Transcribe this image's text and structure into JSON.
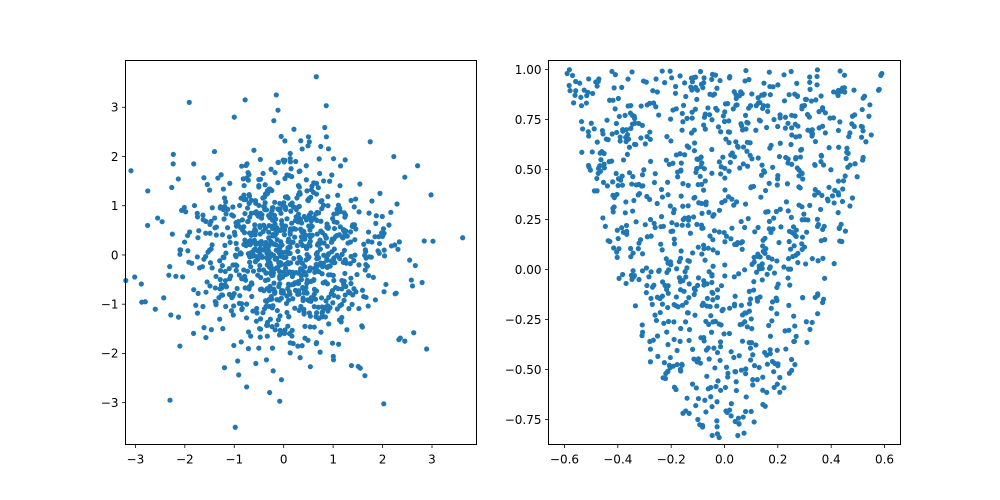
{
  "colors": {
    "series": "#1f77b4",
    "frame": "#000000",
    "background": "#ffffff"
  },
  "chart_data": [
    {
      "type": "scatter",
      "title": "",
      "xlabel": "",
      "ylabel": "",
      "xlim": [
        -3.2,
        3.9
      ],
      "ylim": [
        -3.85,
        3.95
      ],
      "xticks": [
        -3,
        -2,
        -1,
        0,
        1,
        2,
        3
      ],
      "yticks": [
        -3,
        -2,
        -1,
        0,
        1,
        2,
        3
      ],
      "xtick_labels": [
        "−3",
        "−2",
        "−1",
        "0",
        "1",
        "2",
        "3"
      ],
      "ytick_labels": [
        "−3",
        "−2",
        "−1",
        "0",
        "1",
        "2",
        "3"
      ],
      "grid": false,
      "legend": "none",
      "distribution": "bivariate standard normal, approximately 1000 points centered at (0, 0)",
      "point_count": 1000,
      "sample_points": [
        [
          0.66,
          3.62
        ],
        [
          -1.91,
          3.1
        ],
        [
          -0.78,
          3.15
        ],
        [
          -0.15,
          3.25
        ],
        [
          3.62,
          0.35
        ],
        [
          -2.8,
          -0.95
        ],
        [
          -2.75,
          1.3
        ],
        [
          -2.3,
          -2.95
        ],
        [
          -0.98,
          -3.5
        ],
        [
          -0.08,
          -2.97
        ],
        [
          2.45,
          -1.75
        ],
        [
          2.98,
          1.22
        ],
        [
          3.02,
          0.28
        ],
        [
          2.8,
          -0.56
        ],
        [
          -2.1,
          -1.85
        ],
        [
          -1.0,
          2.8
        ],
        [
          0.5,
          2.4
        ],
        [
          1.75,
          2.3
        ],
        [
          -1.4,
          2.1
        ],
        [
          1.55,
          -2.3
        ],
        [
          2.63,
          -1.58
        ],
        [
          2.33,
          -1.72
        ],
        [
          -1.82,
          1.85
        ],
        [
          2.45,
          1.58
        ],
        [
          -2.55,
          0.75
        ]
      ]
    },
    {
      "type": "scatter",
      "title": "",
      "xlabel": "",
      "ylabel": "",
      "xlim": [
        -0.66,
        0.66
      ],
      "ylim": [
        -0.875,
        1.045
      ],
      "xticks": [
        -0.6,
        -0.4,
        -0.2,
        0.0,
        0.2,
        0.4,
        0.6
      ],
      "yticks": [
        -0.75,
        -0.5,
        -0.25,
        0.0,
        0.25,
        0.5,
        0.75,
        1.0
      ],
      "xtick_labels": [
        "−0.6",
        "−0.4",
        "−0.2",
        "0.0",
        "0.2",
        "0.4",
        "0.6"
      ],
      "ytick_labels": [
        "−0.75",
        "−0.50",
        "−0.25",
        "0.00",
        "0.25",
        "0.50",
        "0.75",
        "1.00"
      ],
      "grid": false,
      "legend": "none",
      "distribution": "approximately 1000 points filling the region between y = 5x^2 - 0.85 and y = 1 for x in [-0.6, 0.6]",
      "point_count": 1000,
      "sample_points": [
        [
          -0.59,
          0.98
        ],
        [
          -0.57,
          0.97
        ],
        [
          0.59,
          0.98
        ],
        [
          0.25,
          0.99
        ],
        [
          -0.09,
          0.99
        ],
        [
          -0.02,
          -0.84
        ],
        [
          0.05,
          -0.83
        ],
        [
          0.04,
          -0.76
        ],
        [
          -0.1,
          -0.75
        ],
        [
          0.1,
          -0.71
        ],
        [
          -0.28,
          -0.36
        ],
        [
          0.26,
          -0.36
        ],
        [
          -0.43,
          0.14
        ],
        [
          0.44,
          0.14
        ],
        [
          0.0,
          0.74
        ],
        [
          -0.51,
          0.52
        ],
        [
          0.52,
          0.56
        ],
        [
          -0.22,
          -0.52
        ],
        [
          0.18,
          -0.46
        ],
        [
          0.3,
          0.82
        ]
      ]
    }
  ]
}
